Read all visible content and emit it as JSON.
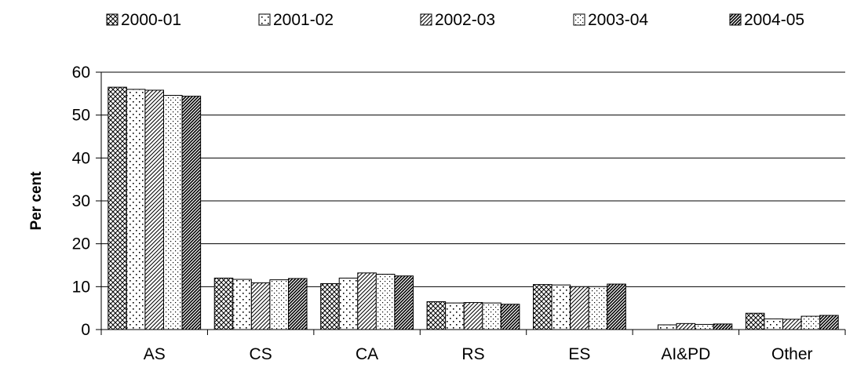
{
  "chart_data": {
    "type": "bar",
    "title": "",
    "xlabel": "",
    "ylabel": "Per cent",
    "ylim": [
      0,
      60
    ],
    "yticks": [
      0,
      10,
      20,
      30,
      40,
      50,
      60
    ],
    "grid": true,
    "legend_position": "top",
    "categories": [
      "AS",
      "CS",
      "CA",
      "RS",
      "ES",
      "AI&PD",
      "Other"
    ],
    "series": [
      {
        "name": "2000-01",
        "pattern": "crosshatch",
        "values": [
          56.5,
          12.0,
          10.7,
          6.5,
          10.5,
          0.0,
          3.8
        ]
      },
      {
        "name": "2001-02",
        "pattern": "sparse-dots",
        "values": [
          56.0,
          11.7,
          12.0,
          6.2,
          10.4,
          1.1,
          2.5
        ]
      },
      {
        "name": "2002-03",
        "pattern": "diagonal-lines",
        "values": [
          55.8,
          10.9,
          13.2,
          6.3,
          10.0,
          1.4,
          2.4
        ]
      },
      {
        "name": "2003-04",
        "pattern": "fine-dots",
        "values": [
          54.6,
          11.6,
          12.9,
          6.2,
          10.0,
          1.2,
          3.1
        ]
      },
      {
        "name": "2004-05",
        "pattern": "dense-diagonal",
        "values": [
          54.4,
          11.9,
          12.5,
          5.9,
          10.6,
          1.3,
          3.3
        ]
      }
    ]
  }
}
